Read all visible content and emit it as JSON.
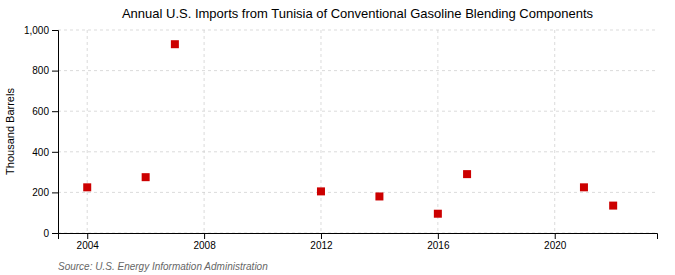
{
  "chart_data": {
    "type": "scatter",
    "title": "Annual U.S. Imports from Tunisia of Conventional Gasoline Blending Components",
    "ylabel": "Thousand Barrels",
    "annotations": [
      "Source: U.S. Energy Information Administration"
    ],
    "x": [
      2004,
      2006,
      2007,
      2012,
      2014,
      2016,
      2017,
      2021,
      2022
    ],
    "values": [
      225,
      275,
      930,
      205,
      180,
      95,
      290,
      225,
      135
    ],
    "color": "#cc0000",
    "marker": "square",
    "xlim": [
      2003,
      2023.5
    ],
    "ylim": [
      0,
      1000
    ],
    "xticks": [
      2004,
      2008,
      2012,
      2016,
      2020
    ],
    "yticks": [
      0,
      200,
      400,
      600,
      800,
      {
        "value": 1000,
        "label": "1,000"
      }
    ],
    "grid": true
  }
}
